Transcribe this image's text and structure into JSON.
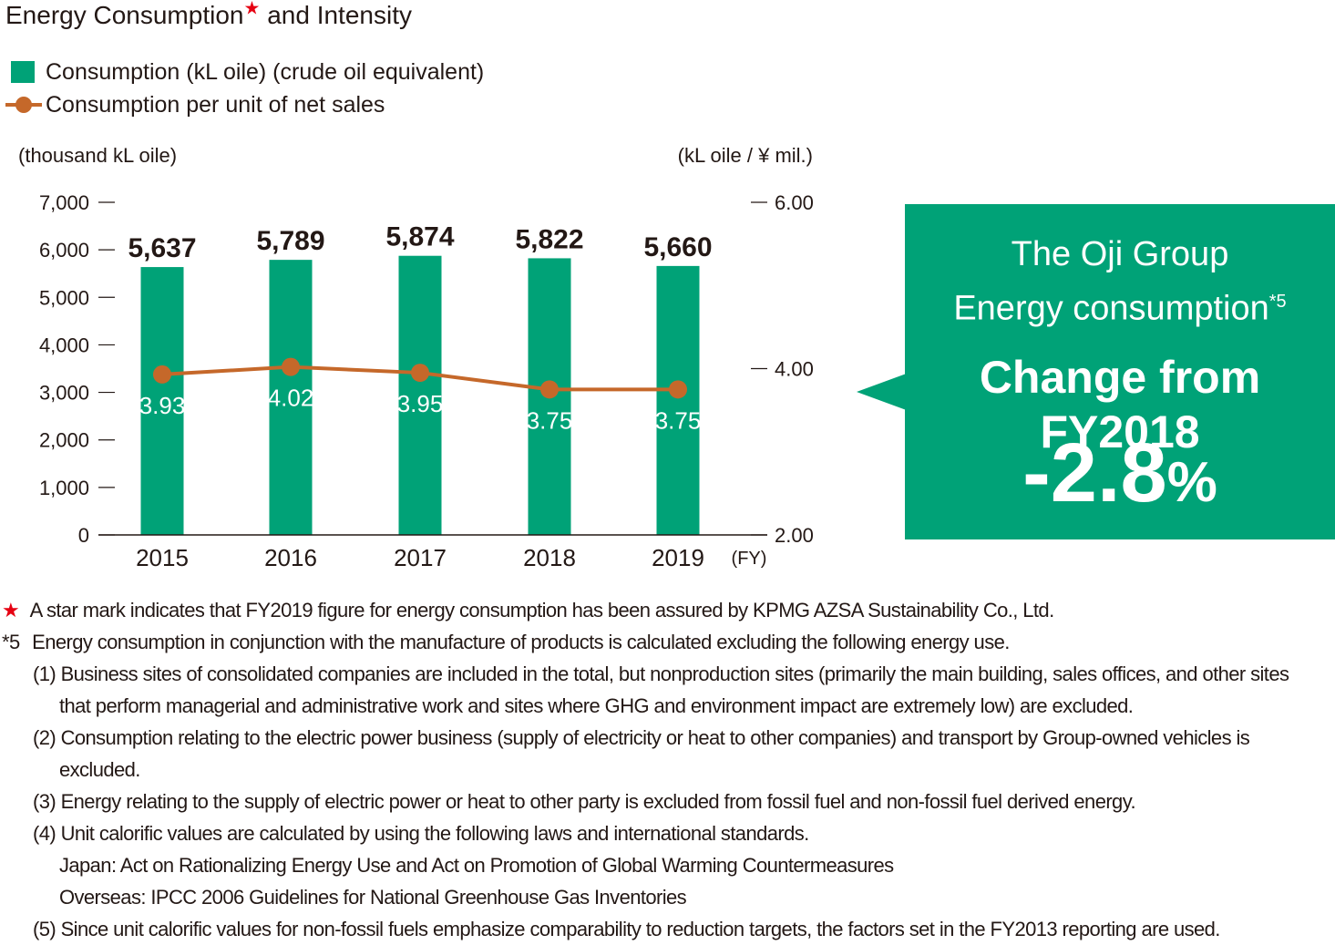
{
  "title": "Energy Consumption",
  "title_suffix": "and Intensity",
  "star_glyph": "★",
  "colors": {
    "bar": "#00a277",
    "line": "#c5682a",
    "callout": "#00a277",
    "star": "#e60012",
    "text": "#231815"
  },
  "legend": [
    {
      "label": "Consumption (kL oile) (crude oil equivalent)"
    },
    {
      "label": "Consumption per unit of net sales"
    }
  ],
  "chart_data": {
    "type": "bar+line",
    "categories": [
      "2015",
      "2016",
      "2017",
      "2018",
      "2019"
    ],
    "x_unit": "(FY)",
    "left_axis": {
      "label": "(thousand kL oile)",
      "range": [
        0,
        7000
      ],
      "ticks": [
        "0",
        "1,000",
        "2,000",
        "3,000",
        "4,000",
        "5,000",
        "6,000",
        "7,000"
      ]
    },
    "right_axis": {
      "label": "(kL oile / ¥ mil.)",
      "range": [
        2.0,
        6.0
      ],
      "ticks": [
        "2.00",
        "4.00",
        "6.00"
      ]
    },
    "series": [
      {
        "name": "Consumption (kL oile) (crude oil equivalent)",
        "type": "bar",
        "axis": "left",
        "values": [
          5637,
          5789,
          5874,
          5822,
          5660
        ],
        "labels": [
          "5,637",
          "5,789",
          "5,874",
          "5,822",
          "5,660"
        ]
      },
      {
        "name": "Consumption per unit of net sales",
        "type": "line",
        "axis": "right",
        "values": [
          3.93,
          4.02,
          3.95,
          3.75,
          3.75
        ],
        "labels": [
          "3.93",
          "4.02",
          "3.95",
          "3.75",
          "3.75"
        ]
      }
    ],
    "grid": false,
    "legend_position": "top-left"
  },
  "callout": {
    "line1": "The Oji Group",
    "line2": "Energy consumption",
    "line2_sup": "*5",
    "line3": "Change from FY2018",
    "value": "-2.8",
    "unit": "%"
  },
  "notes": {
    "star_note": "A star mark indicates that FY2019 figure for energy consumption has been assured by KPMG AZSA Sustainability Co., Ltd.",
    "fn_mark": "*5",
    "fn_text": "Energy consumption in conjunction with the manufacture of products is calculated excluding the following energy use.",
    "items": [
      "(1) Business sites of consolidated companies are included in the total, but nonproduction sites (primarily the main building, sales offices, and other sites",
      "that perform managerial and administrative work and sites where GHG and environment impact are extremely low) are excluded.",
      "(2) Consumption relating to the electric power business (supply of electricity or heat to other companies) and transport by Group-owned vehicles is",
      "excluded.",
      "(3) Energy relating to the supply of electric power or heat to other party is excluded from fossil fuel and non-fossil fuel derived energy.",
      "(4) Unit calorific values are calculated by using the following laws and international standards.",
      "Japan: Act on Rationalizing Energy Use and Act on Promotion of Global Warming Countermeasures",
      "Overseas: IPCC 2006 Guidelines for National Greenhouse Gas Inventories",
      "(5) Since unit calorific values for non-fossil fuels emphasize comparability to reduction targets, the factors set in the FY2013 reporting are used."
    ]
  }
}
